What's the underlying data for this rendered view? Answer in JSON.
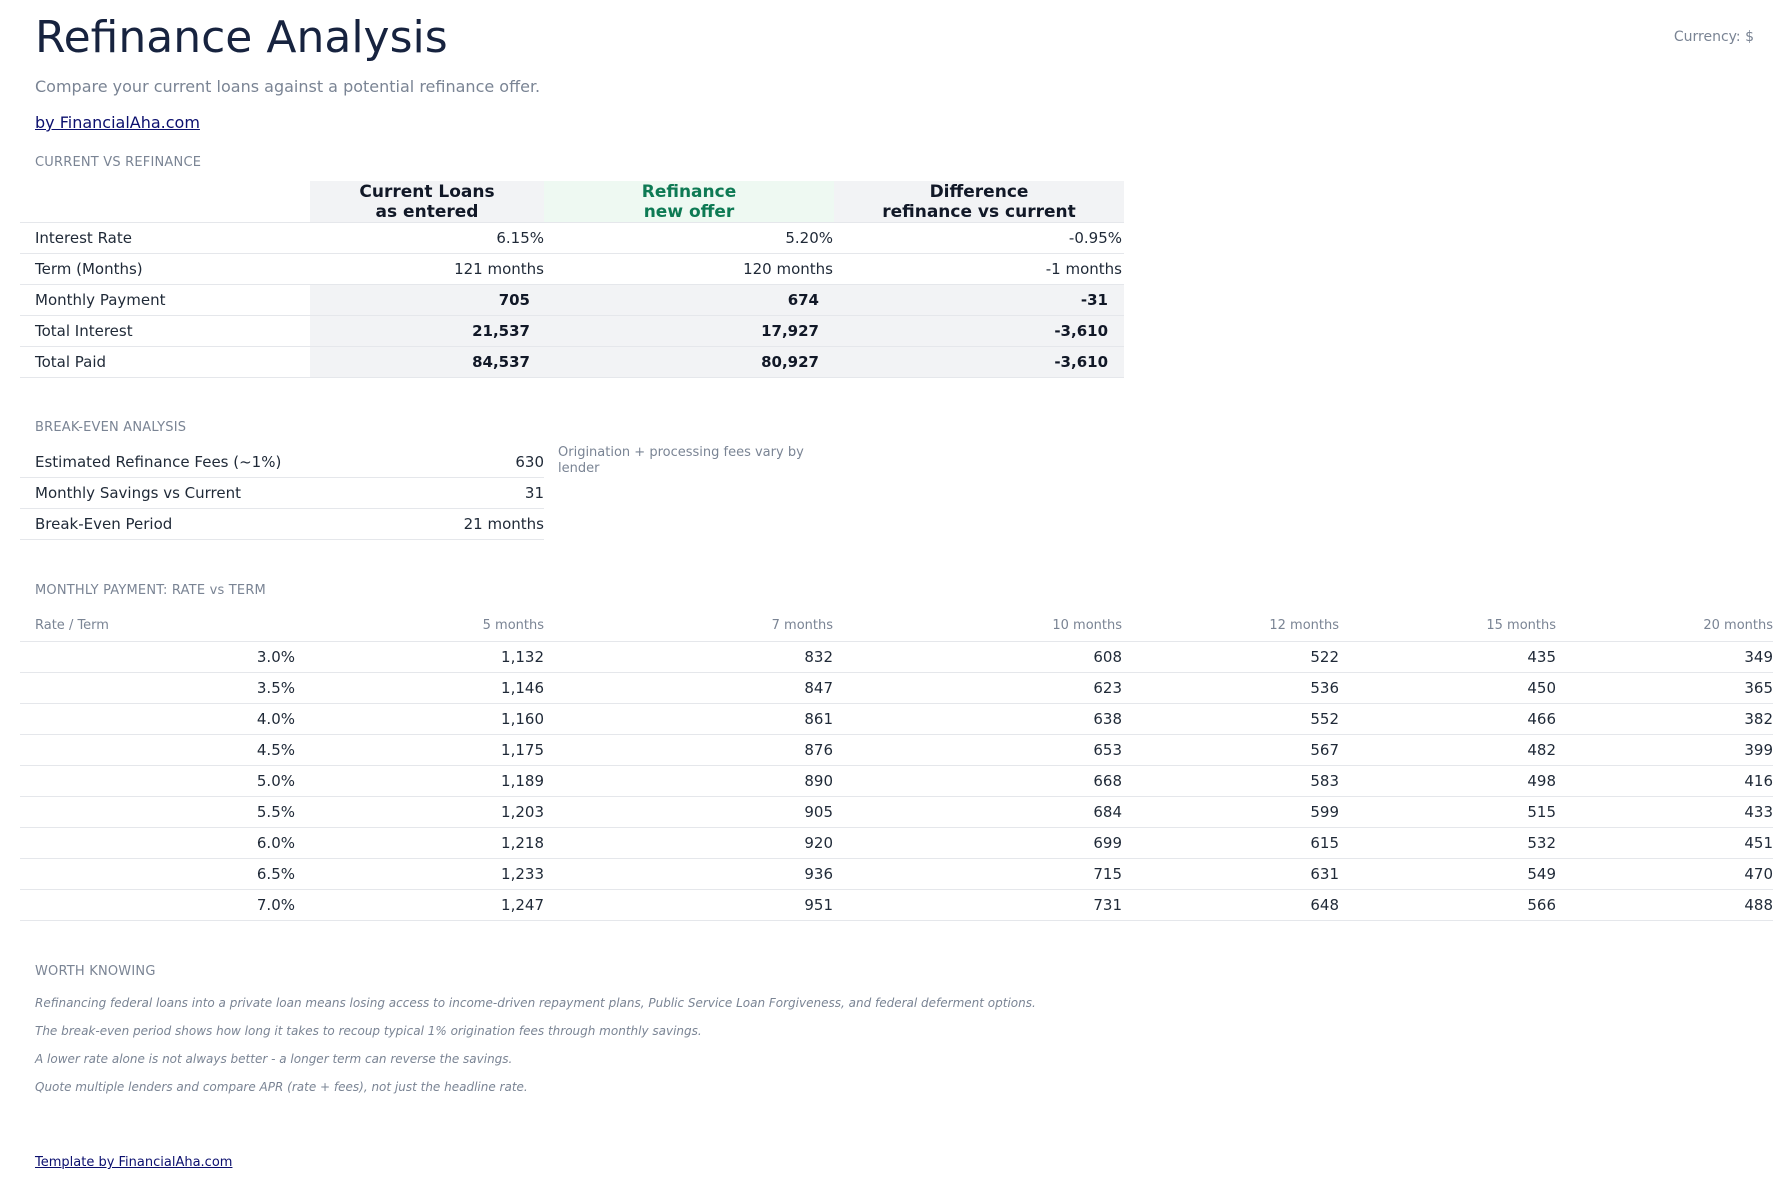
{
  "header": {
    "title": "Refinance Analysis",
    "currency": "Currency: $",
    "subtitle": "Compare your current loans against a potential refinance offer.",
    "byline": "by FinancialAha.com"
  },
  "comparison": {
    "section_label": "CURRENT VS REFINANCE",
    "columns": [
      {
        "title": "Current Loans",
        "subtitle": "as entered"
      },
      {
        "title": "Refinance",
        "subtitle": "new offer"
      },
      {
        "title": "Difference",
        "subtitle": "refinance vs current"
      }
    ],
    "rows": [
      {
        "label": "Interest Rate",
        "values": [
          "6.15%",
          "5.20%",
          "-0.95%"
        ]
      },
      {
        "label": "Term (Months)",
        "values": [
          "121 months",
          "120 months",
          "-1 months"
        ]
      },
      {
        "label": "Monthly Payment",
        "values": [
          "705",
          "674",
          "-31"
        ]
      },
      {
        "label": "Total Interest",
        "values": [
          "21,537",
          "17,927",
          "-3,610"
        ]
      },
      {
        "label": "Total Paid",
        "values": [
          "84,537",
          "80,927",
          "-3,610"
        ]
      }
    ]
  },
  "breakeven": {
    "section_label": "BREAK-EVEN ANALYSIS",
    "rows": [
      {
        "label": "Estimated Refinance Fees (~1%)",
        "value": "630"
      },
      {
        "label": "Monthly Savings vs Current",
        "value": "31"
      },
      {
        "label": "Break-Even Period",
        "value": "21 months"
      }
    ],
    "note": "Origination + processing fees vary by lender"
  },
  "payment_grid": {
    "section_label": "MONTHLY PAYMENT: RATE vs TERM",
    "corner_label": "Rate / Term",
    "terms": [
      "5 months",
      "7 months",
      "10 months",
      "12 months",
      "15 months",
      "20 months"
    ],
    "rows": [
      {
        "rate": "3.0%",
        "values": [
          "1,132",
          "832",
          "608",
          "522",
          "435",
          "349"
        ]
      },
      {
        "rate": "3.5%",
        "values": [
          "1,146",
          "847",
          "623",
          "536",
          "450",
          "365"
        ]
      },
      {
        "rate": "4.0%",
        "values": [
          "1,160",
          "861",
          "638",
          "552",
          "466",
          "382"
        ]
      },
      {
        "rate": "4.5%",
        "values": [
          "1,175",
          "876",
          "653",
          "567",
          "482",
          "399"
        ]
      },
      {
        "rate": "5.0%",
        "values": [
          "1,189",
          "890",
          "668",
          "583",
          "498",
          "416"
        ]
      },
      {
        "rate": "5.5%",
        "values": [
          "1,203",
          "905",
          "684",
          "599",
          "515",
          "433"
        ]
      },
      {
        "rate": "6.0%",
        "values": [
          "1,218",
          "920",
          "699",
          "615",
          "532",
          "451"
        ]
      },
      {
        "rate": "6.5%",
        "values": [
          "1,233",
          "936",
          "715",
          "631",
          "549",
          "470"
        ]
      },
      {
        "rate": "7.0%",
        "values": [
          "1,247",
          "951",
          "731",
          "648",
          "566",
          "488"
        ]
      }
    ]
  },
  "worth_knowing": {
    "section_label": "WORTH KNOWING",
    "tips": [
      "Refinancing federal loans into a private loan means losing access to income-driven repayment plans, Public Service Loan Forgiveness, and federal deferment options.",
      "The break-even period shows how long it takes to recoup typical 1% origination fees through monthly savings.",
      "A lower rate alone is not always better - a longer term can reverse the savings.",
      "Quote multiple lenders and compare APR (rate + fees), not just the headline rate."
    ]
  },
  "footer": {
    "link": "Template by FinancialAha.com"
  },
  "colors": {
    "title": "#17233f",
    "muted": "#7a8494",
    "link": "#0b0f6e",
    "refinance_accent": "#0e7a54",
    "refinance_bg": "#eef9f2",
    "shade_bg": "#f2f3f5"
  }
}
